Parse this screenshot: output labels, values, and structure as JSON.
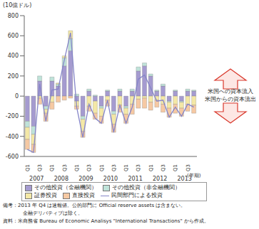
{
  "chart_data": {
    "type": "bar",
    "stacked": true,
    "grid": false,
    "y_label": "(10億ドル)",
    "x_label": "(年期)",
    "categories": [
      "Q1",
      null,
      "Q3",
      null,
      "Q1",
      null,
      "Q3",
      null,
      "Q1",
      null,
      "Q3",
      null,
      "Q1",
      null,
      "Q3",
      null,
      "Q1",
      null,
      "Q3",
      null,
      "Q1",
      null,
      "Q3",
      null,
      "Q1",
      null,
      "Q3",
      null
    ],
    "years": [
      "2007",
      "2008",
      "2009",
      "2010",
      "2011",
      "2012",
      "2013"
    ],
    "ylim": [
      -600,
      800
    ],
    "yticks": [
      -600,
      -400,
      -200,
      0,
      200,
      400,
      600,
      800
    ],
    "series": [
      {
        "name": "その他投資（金融機関）",
        "type": "bar",
        "color": "#a59bd0",
        "values": [
          -250,
          -300,
          150,
          -100,
          150,
          100,
          300,
          450,
          -50,
          -200,
          50,
          -50,
          -100,
          50,
          -150,
          50,
          -100,
          50,
          250,
          300,
          200,
          50,
          100,
          -50,
          50,
          -50,
          50,
          50
        ]
      },
      {
        "name": "その他投資（非金融機関）",
        "type": "bar",
        "color": "#bfe3d9",
        "values": [
          -60,
          -80,
          50,
          -30,
          40,
          20,
          80,
          120,
          20,
          -30,
          20,
          10,
          -20,
          10,
          -30,
          20,
          -20,
          20,
          40,
          30,
          20,
          10,
          20,
          -10,
          10,
          -10,
          20,
          10
        ]
      },
      {
        "name": "証券投資",
        "type": "bar",
        "color": "#f4e8a6",
        "values": [
          -120,
          -100,
          -20,
          -40,
          -60,
          10,
          20,
          80,
          -50,
          -120,
          -100,
          -120,
          -80,
          -40,
          -100,
          -90,
          -60,
          -80,
          -30,
          -20,
          -60,
          -40,
          -80,
          -60,
          -80,
          -60,
          -80,
          -90
        ]
      },
      {
        "name": "直接投資",
        "type": "bar",
        "color": "#f6c9a3",
        "values": [
          -100,
          -80,
          -60,
          -80,
          -70,
          -60,
          -40,
          -20,
          -30,
          -60,
          -50,
          -60,
          -70,
          -60,
          -80,
          -70,
          -90,
          -100,
          -90,
          -100,
          -80,
          -70,
          -80,
          -90,
          -90,
          -80,
          -70,
          -80
        ]
      },
      {
        "name": "民間部門による投資",
        "type": "line",
        "color": "#8585c8",
        "values": [
          -530,
          -560,
          120,
          -250,
          60,
          70,
          360,
          630,
          -110,
          -410,
          -80,
          -220,
          -270,
          -40,
          -360,
          -90,
          -270,
          -110,
          170,
          210,
          80,
          -50,
          -40,
          -210,
          -110,
          -200,
          -80,
          -110
        ]
      }
    ],
    "annotations": [
      "米国への資本流入",
      "米国からの資本流出"
    ],
    "notes": [
      "備考：2013 年 Q4 は速報値。公的部門に Official reserve assets は含まない。",
      "金融デリバティブは除く。",
      "資料：米商務省 Bureau of Economic Analisys \"International Transactions\" から作成。"
    ]
  }
}
